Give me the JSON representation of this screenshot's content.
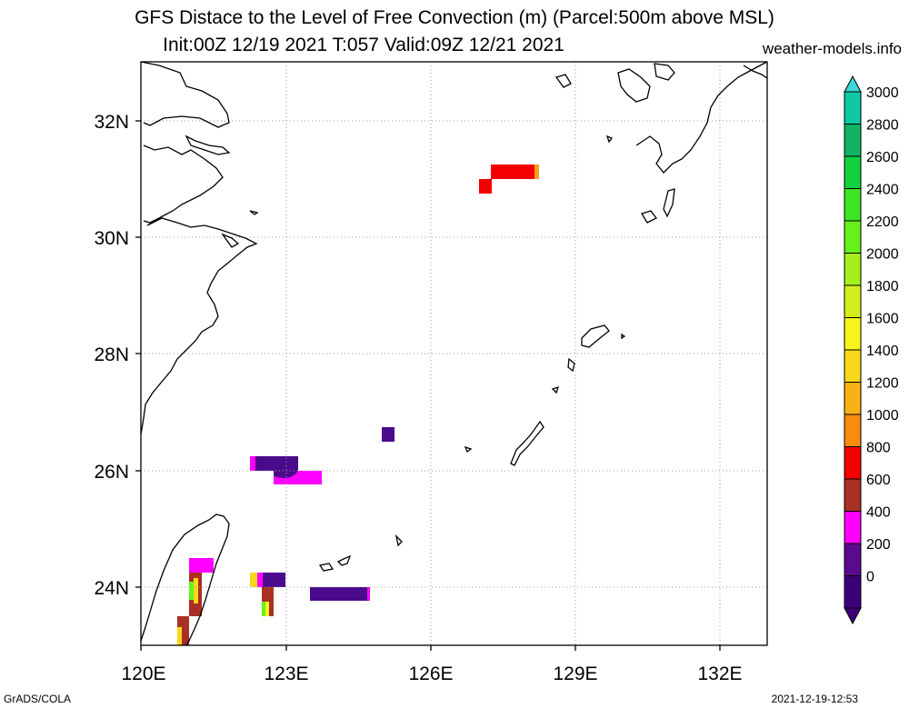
{
  "header": {
    "title_line1": "GFS Distace to the Level of Free Convection (m) (Parcel:500m above MSL)",
    "title_line2": "Init:00Z 12/19 2021 T:057 Valid:09Z 12/21 2021",
    "credit": "weather-models.info"
  },
  "footer": {
    "left": "GrADS/COLA",
    "right": "2021-12-19-12:53"
  },
  "map": {
    "lon_range": [
      120,
      133
    ],
    "lat_range": [
      23,
      33
    ],
    "lon_ticks": [
      "120E",
      "123E",
      "126E",
      "129E",
      "132E"
    ],
    "lat_ticks": [
      "32N",
      "30N",
      "28N",
      "26N",
      "24N"
    ],
    "grid": "dotted",
    "coastline_color": "#000000"
  },
  "colorbar": {
    "labels": [
      "3000",
      "2800",
      "2600",
      "2400",
      "2200",
      "2000",
      "1800",
      "1600",
      "1400",
      "1200",
      "1000",
      "800",
      "600",
      "400",
      "200",
      "0"
    ],
    "colors": [
      "#3bd7d7",
      "#10c8a6",
      "#10b464",
      "#11d23f",
      "#3ce625",
      "#67f11c",
      "#a5f01a",
      "#d2ef1d",
      "#f8f41d",
      "#f8d819",
      "#f8b215",
      "#f88c0e",
      "#f50000",
      "#aa2f24",
      "#ff00ff",
      "#5a0a8c",
      "#3c0078"
    ]
  },
  "field_patches": [
    {
      "label": "red",
      "color": "#f50000"
    },
    {
      "label": "orange",
      "color": "#f8a015"
    },
    {
      "label": "purple",
      "color": "#4b0a8c"
    },
    {
      "label": "magenta",
      "color": "#ff00ff"
    },
    {
      "label": "brown",
      "color": "#aa2f24"
    },
    {
      "label": "yellow",
      "color": "#f8f41d"
    },
    {
      "label": "green",
      "color": "#67f11c"
    }
  ]
}
